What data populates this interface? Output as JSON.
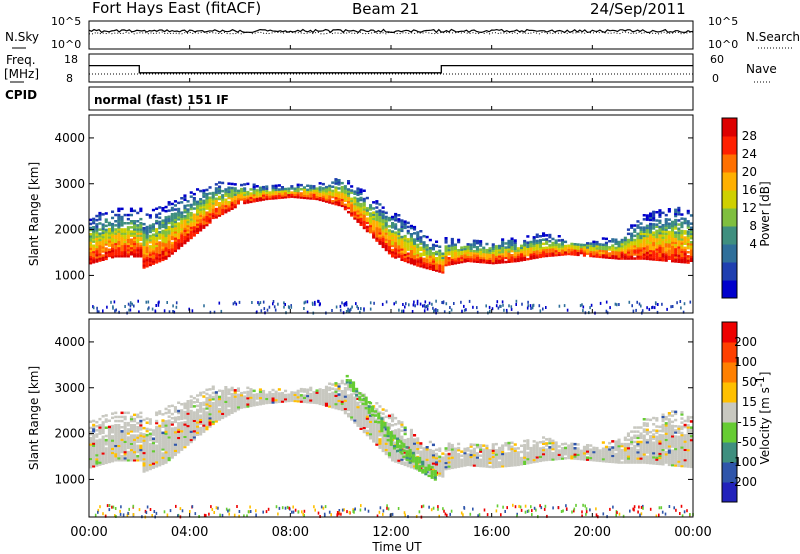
{
  "header": {
    "station": "Fort Hays East (fitACF)",
    "beam": "Beam 21",
    "date": "24/Sep/2011"
  },
  "top_panels": {
    "nsky_label": "N.Sky",
    "nsky_ticks": [
      "10^5",
      "10^0"
    ],
    "nsearch_label": "N.Search",
    "nsearch_ticks": [
      "10^5",
      "10^0"
    ],
    "freq_label": "Freq.",
    "freq_unit": "[MHz]",
    "freq_ticks": [
      "18",
      "8"
    ],
    "nave_label": "Nave",
    "nave_ticks": [
      "60",
      "0"
    ],
    "cpid_label": "CPID",
    "cpid_text": "normal (fast) 151 IF"
  },
  "chart_data": [
    {
      "type": "heatmap",
      "panel": "power",
      "ylabel": "Slant Range [km]",
      "ylim": [
        180,
        4500
      ],
      "yticks": [
        "4000",
        "3000",
        "2000",
        "1000"
      ],
      "xlim": [
        "00:00",
        "24:00"
      ],
      "colorbar": {
        "label": "Power [dB]",
        "ticks": [
          "28",
          "24",
          "20",
          "16",
          "12",
          "8",
          "4"
        ],
        "colors": [
          "#0000cc",
          "#1f3fb0",
          "#2f6f9a",
          "#3f8f7f",
          "#7fbf3f",
          "#cfd000",
          "#ffb000",
          "#ff7000",
          "#ff2000",
          "#dd0000"
        ]
      },
      "echo_bands": [
        {
          "name": "main",
          "x": [
            0,
            1,
            2,
            2.1,
            3,
            4,
            5,
            6,
            7,
            8,
            9,
            10,
            11,
            12,
            13,
            14,
            14.05,
            15,
            16,
            17,
            18,
            19,
            20,
            21,
            22,
            23,
            24
          ],
          "inner": [
            1250,
            1400,
            1400,
            1150,
            1350,
            1800,
            2250,
            2550,
            2650,
            2700,
            2650,
            2500,
            1950,
            1400,
            1200,
            1050,
            1200,
            1300,
            1250,
            1300,
            1400,
            1450,
            1400,
            1350,
            1350,
            1300,
            1250
          ],
          "outer": [
            2300,
            2450,
            2450,
            2300,
            2550,
            2800,
            3050,
            3000,
            2950,
            2950,
            3000,
            3150,
            2800,
            2400,
            2000,
            1650,
            1800,
            1750,
            1750,
            1800,
            1900,
            1800,
            1750,
            1850,
            2300,
            2500,
            2400
          ]
        }
      ]
    },
    {
      "type": "heatmap",
      "panel": "velocity",
      "ylabel": "Slant Range [km]",
      "ylim": [
        180,
        4500
      ],
      "yticks": [
        "4000",
        "3000",
        "2000",
        "1000"
      ],
      "xlim": [
        "00:00",
        "24:00"
      ],
      "colorbar": {
        "label": "Velocity [m s-1]",
        "label_text": "Velocity [m s",
        "label_exp": "-1",
        "label_end": "]",
        "ticks": [
          "200",
          "100",
          "50",
          "15",
          "-15",
          "-50",
          "-100",
          "-200"
        ],
        "colors": [
          "#2222bb",
          "#2f55aa",
          "#3f8f7f",
          "#66cc33",
          "#c8c8c0",
          "#ffc000",
          "#ff8000",
          "#ff4000",
          "#ee0000"
        ]
      },
      "echo_bands": [
        {
          "name": "main",
          "x": [
            0,
            1,
            2,
            2.1,
            3,
            4,
            5,
            6,
            7,
            8,
            9,
            10,
            11,
            12,
            13,
            14,
            14.05,
            15,
            16,
            17,
            18,
            19,
            20,
            21,
            22,
            23,
            24
          ],
          "inner": [
            1250,
            1400,
            1400,
            1150,
            1350,
            1800,
            2250,
            2550,
            2650,
            2700,
            2650,
            2500,
            1950,
            1400,
            1200,
            1050,
            1200,
            1300,
            1250,
            1300,
            1400,
            1450,
            1400,
            1350,
            1350,
            1300,
            1250
          ],
          "outer": [
            2300,
            2450,
            2450,
            2300,
            2550,
            2800,
            3050,
            3000,
            2950,
            2950,
            3000,
            3150,
            2800,
            2400,
            2000,
            1650,
            1800,
            1750,
            1750,
            1800,
            1900,
            1800,
            1750,
            1850,
            2300,
            2500,
            2400
          ]
        },
        {
          "name": "ionospheric-streak",
          "x": [
            10.2,
            11,
            12,
            13,
            13.8
          ],
          "inner": [
            3100,
            2500,
            1700,
            1200,
            950
          ],
          "outer": [
            3250,
            2750,
            2000,
            1500,
            1200
          ]
        }
      ]
    },
    {
      "type": "line",
      "panel": "frequency",
      "x": [
        0,
        2,
        2,
        14,
        14,
        24
      ],
      "values": [
        14,
        14,
        11,
        11,
        14,
        14
      ],
      "ylim": [
        8,
        18
      ]
    }
  ],
  "xaxis": {
    "ticks": [
      "00:00",
      "04:00",
      "08:00",
      "12:00",
      "16:00",
      "20:00",
      "00:00"
    ],
    "label": "Time UT"
  },
  "colors": {
    "axis": "#000000",
    "background": "#ffffff"
  }
}
